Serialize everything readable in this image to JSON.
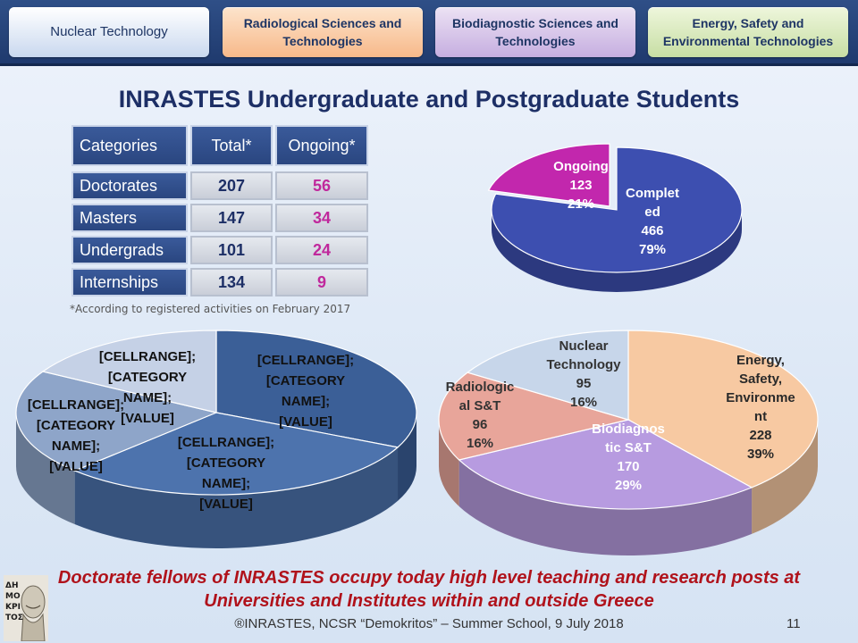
{
  "nav": {
    "tabs": [
      {
        "label": "Nuclear Technology"
      },
      {
        "label": "Radiological Sciences and Technologies"
      },
      {
        "label": "Biodiagnostic Sciences and Technologies"
      },
      {
        "label": "Energy, Safety and Environmental Technologies"
      }
    ]
  },
  "title": "INRASTES Undergraduate and Postgraduate Students",
  "table": {
    "headers": [
      "Categories",
      "Total*",
      "Ongoing*"
    ],
    "rows": [
      {
        "category": "Doctorates",
        "total": "207",
        "ongoing": "56"
      },
      {
        "category": "Masters",
        "total": "147",
        "ongoing": "34"
      },
      {
        "category": "Undergrads",
        "total": "101",
        "ongoing": "24"
      },
      {
        "category": "Internships",
        "total": "134",
        "ongoing": "9"
      }
    ],
    "footnote": "*According to registered activities on February 2017"
  },
  "colors": {
    "completed": "#3d4fb0",
    "ongoing": "#c227ad",
    "energy": "#f7c9a2",
    "biodiagnostic": "#b79be0",
    "radiological": "#e8a59a",
    "nuclear": "#c7d6ea",
    "left_pie_1": "#3b5f97",
    "left_pie_2": "#4d73ad",
    "left_pie_3": "#8ea5c9",
    "left_pie_4": "#c5d1e6"
  },
  "chart_data": [
    {
      "type": "pie",
      "categories": [
        "Ongoing",
        "Completed"
      ],
      "values": [
        123,
        466
      ],
      "percentages": [
        "21%",
        "79%"
      ],
      "labels": [
        {
          "lines": [
            "Ongoing",
            "123",
            "21%"
          ]
        },
        {
          "lines": [
            "Complet",
            "ed",
            "466",
            "79%"
          ]
        }
      ]
    },
    {
      "type": "pie",
      "placeholder_labels": [
        {
          "lines": [
            "[CELLRANGE];",
            "[CATEGORY",
            "NAME];",
            "[VALUE]"
          ]
        },
        {
          "lines": [
            "[CELLRANGE];",
            "[CATEGORY",
            "NAME];",
            "[VALUE]"
          ]
        },
        {
          "lines": [
            "[CELLRANGE];",
            "[CATEGORY",
            "NAME];",
            "[VALUE]"
          ]
        },
        {
          "lines": [
            "[CELLRANGE];",
            "[CATEGORY",
            "NAME];",
            "[VALUE]"
          ]
        }
      ]
    },
    {
      "type": "pie",
      "categories": [
        "Energy, Safety, Environment",
        "Biodiagnostic S&T",
        "Radiological S&T",
        "Nuclear Technology"
      ],
      "values": [
        228,
        170,
        96,
        95
      ],
      "percentages": [
        "39%",
        "29%",
        "16%",
        "16%"
      ],
      "labels": [
        {
          "lines": [
            "Energy,",
            "Safety,",
            "Environme",
            "nt",
            "228",
            "39%"
          ]
        },
        {
          "lines": [
            "Biodiagnos",
            "tic S&T",
            "170",
            "29%"
          ]
        },
        {
          "lines": [
            "Radiologic",
            "al S&T",
            "96",
            "16%"
          ]
        },
        {
          "lines": [
            "Nuclear",
            "Technology",
            "95",
            "16%"
          ]
        }
      ]
    }
  ],
  "bottom_message": {
    "line1": "Doctorate fellows of INRASTES occupy today high level teaching and research posts at",
    "line2": "Universities and Institutes within and outside Greece"
  },
  "footer": {
    "text": "®INRASTES, NCSR “Demokritos” – Summer School, 9 July 2018",
    "page_number": "11"
  },
  "logo": {
    "name": "demokritos-logo",
    "letters": "ΔΗΜΟΚΡΙΤΟΣ"
  }
}
